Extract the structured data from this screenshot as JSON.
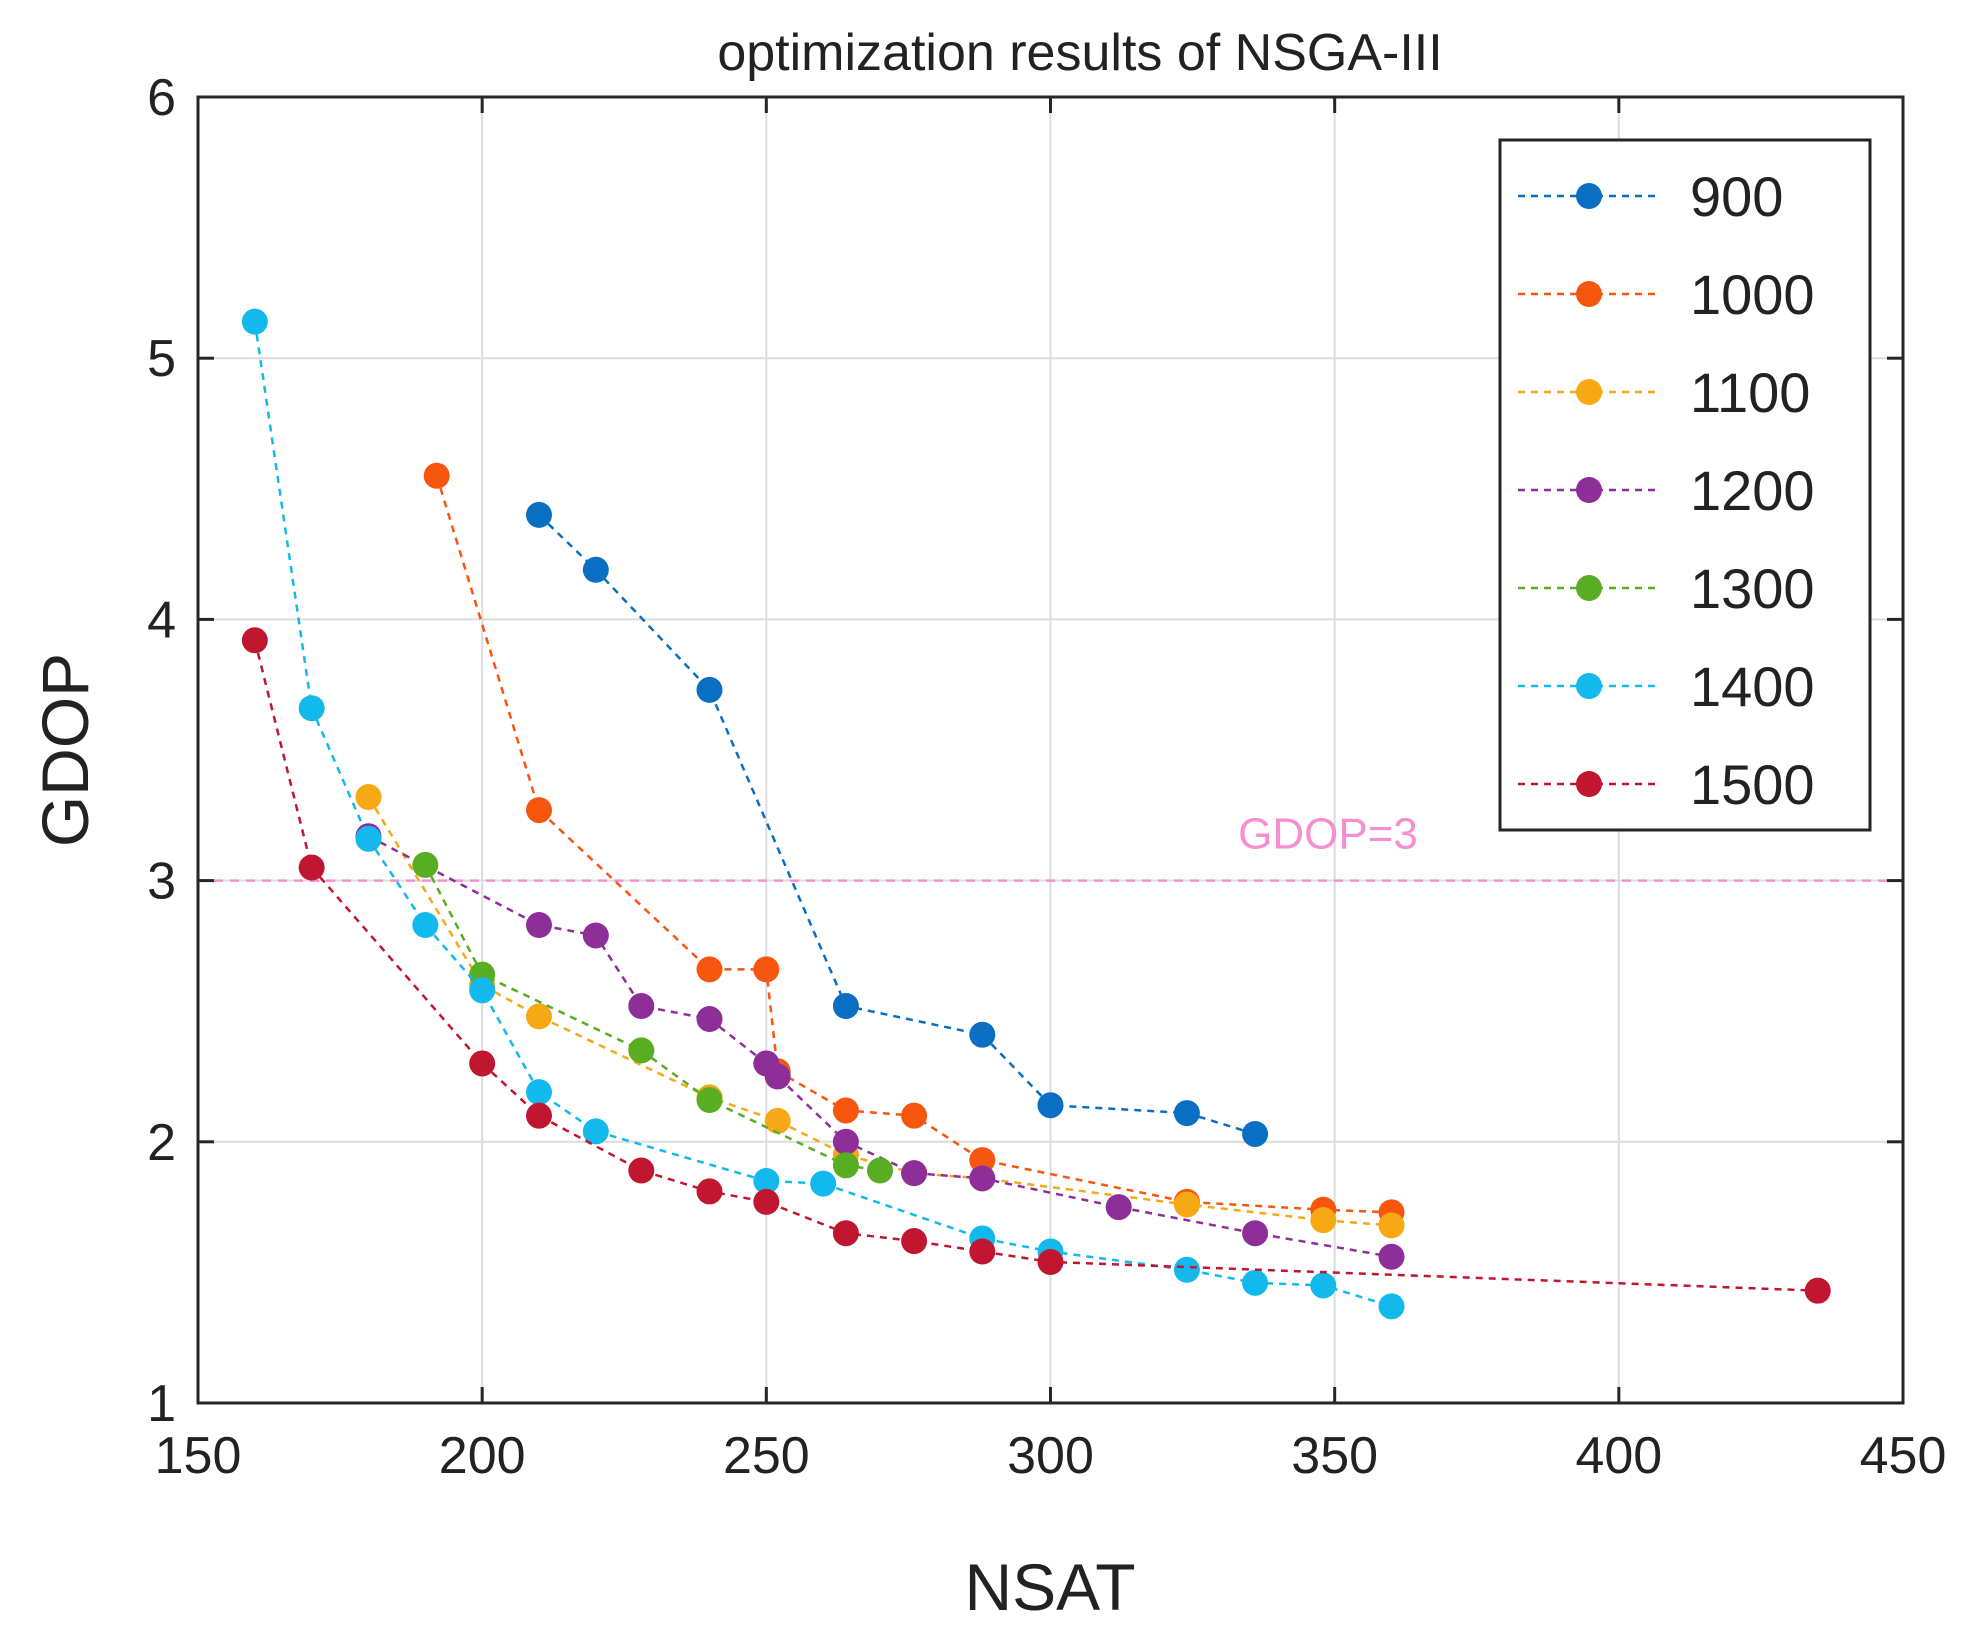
{
  "chart_data": {
    "type": "line",
    "title": "optimization results of NSGA-III",
    "xlabel": "NSAT",
    "ylabel": "GDOP",
    "xlim": [
      150,
      450
    ],
    "ylim": [
      1,
      6
    ],
    "xticks": [
      150,
      200,
      250,
      300,
      350,
      400,
      450
    ],
    "yticks": [
      1,
      2,
      3,
      4,
      5,
      6
    ],
    "xtick_labels": [
      "150",
      "200",
      "250",
      "300",
      "350",
      "400",
      "450"
    ],
    "ytick_labels": [
      "1",
      "2",
      "3",
      "4",
      "5",
      "6"
    ],
    "grid": true,
    "legend_position": "top-right",
    "reference_line": {
      "y": 3,
      "label": "GDOP=3",
      "color": "#f58fcf"
    },
    "series": [
      {
        "name": "900",
        "color": "#0a6fc2",
        "x": [
          210,
          220,
          240,
          264,
          288,
          300,
          324,
          336
        ],
        "y": [
          4.4,
          4.19,
          3.73,
          2.52,
          2.41,
          2.14,
          2.11,
          2.03
        ]
      },
      {
        "name": "1000",
        "color": "#f7560f",
        "x": [
          192,
          210,
          240,
          250,
          252,
          264,
          276,
          288,
          324,
          348,
          360
        ],
        "y": [
          4.55,
          3.27,
          2.66,
          2.66,
          2.27,
          2.12,
          2.1,
          1.93,
          1.77,
          1.74,
          1.73
        ]
      },
      {
        "name": "1100",
        "color": "#f7a815",
        "x": [
          180,
          200,
          210,
          240,
          252,
          264,
          276,
          288,
          324,
          348,
          360
        ],
        "y": [
          3.32,
          2.6,
          2.48,
          2.17,
          2.08,
          1.95,
          1.88,
          1.86,
          1.76,
          1.7,
          1.68
        ]
      },
      {
        "name": "1200",
        "color": "#8e2e99",
        "x": [
          180,
          210,
          220,
          228,
          240,
          250,
          252,
          264,
          276,
          288,
          312,
          336,
          360
        ],
        "y": [
          3.17,
          2.83,
          2.79,
          2.52,
          2.47,
          2.3,
          2.25,
          2.0,
          1.88,
          1.86,
          1.75,
          1.65,
          1.56
        ]
      },
      {
        "name": "1300",
        "color": "#58ad23",
        "x": [
          190,
          200,
          228,
          240,
          264,
          270
        ],
        "y": [
          3.06,
          2.64,
          2.35,
          2.16,
          1.91,
          1.89
        ]
      },
      {
        "name": "1400",
        "color": "#13b9ec",
        "x": [
          160,
          170,
          180,
          190,
          200,
          210,
          220,
          250,
          260,
          288,
          300,
          324,
          336,
          348,
          360
        ],
        "y": [
          5.14,
          3.66,
          3.16,
          2.83,
          2.58,
          2.19,
          2.04,
          1.85,
          1.84,
          1.63,
          1.58,
          1.51,
          1.46,
          1.45,
          1.37
        ]
      },
      {
        "name": "1500",
        "color": "#c0162f",
        "x": [
          160,
          170,
          200,
          210,
          228,
          240,
          250,
          264,
          276,
          288,
          300,
          435
        ],
        "y": [
          3.92,
          3.05,
          2.3,
          2.1,
          1.89,
          1.81,
          1.77,
          1.65,
          1.62,
          1.58,
          1.54,
          1.43
        ]
      }
    ]
  }
}
